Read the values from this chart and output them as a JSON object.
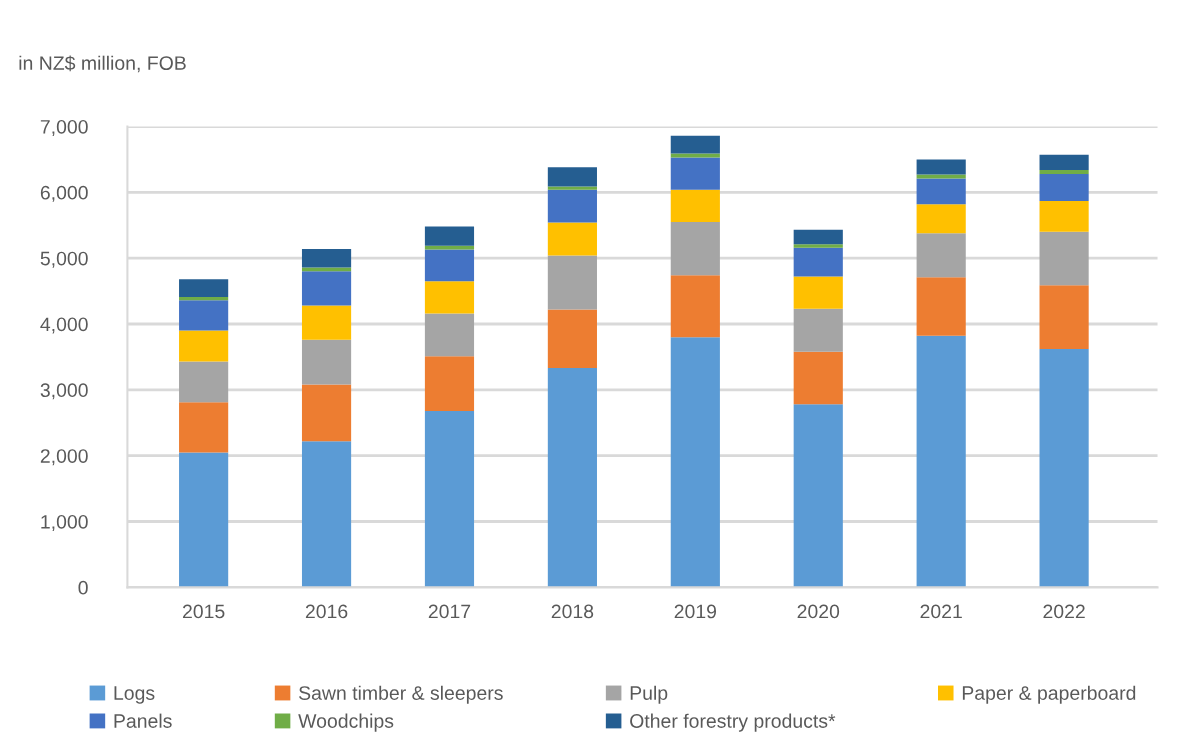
{
  "chart_data": {
    "type": "bar",
    "stacked": true,
    "ylabel": "in NZ$ million, FOB",
    "categories": [
      "2015",
      "2016",
      "2017",
      "2018",
      "2019",
      "2020",
      "2021",
      "2022"
    ],
    "series": [
      {
        "name": "Logs",
        "color": "#5b9bd5",
        "values": [
          2050,
          2220,
          2680,
          3330,
          3800,
          2780,
          3820,
          3620
        ]
      },
      {
        "name": "Sawn timber & sleepers",
        "color": "#ed7d31",
        "values": [
          760,
          860,
          830,
          890,
          940,
          800,
          890,
          970
        ]
      },
      {
        "name": "Pulp",
        "color": "#a5a5a5",
        "values": [
          620,
          680,
          650,
          820,
          810,
          650,
          670,
          810
        ]
      },
      {
        "name": "Paper & paperboard",
        "color": "#ffc000",
        "values": [
          470,
          520,
          490,
          500,
          490,
          490,
          440,
          470
        ]
      },
      {
        "name": "Panels",
        "color": "#4472c4",
        "values": [
          460,
          520,
          480,
          500,
          490,
          440,
          390,
          410
        ]
      },
      {
        "name": "Woodchips",
        "color": "#70ad47",
        "values": [
          50,
          60,
          60,
          50,
          60,
          50,
          60,
          60
        ]
      },
      {
        "name": "Other forestry products*",
        "color": "#255e91",
        "values": [
          270,
          280,
          290,
          290,
          270,
          220,
          230,
          230
        ]
      }
    ],
    "ylim": [
      0,
      7000
    ],
    "yticks": [
      0,
      {
        "value": 1000,
        "label": "1,000"
      },
      {
        "value": 2000,
        "label": "2,000"
      },
      {
        "value": 3000,
        "label": "3,000"
      },
      {
        "value": 4000,
        "label": "4,000"
      },
      {
        "value": 5000,
        "label": "5,000"
      },
      {
        "value": 6000,
        "label": "6,000"
      },
      {
        "value": 7000,
        "label": "7,000"
      }
    ],
    "grid": "y",
    "legend": "bottom"
  }
}
